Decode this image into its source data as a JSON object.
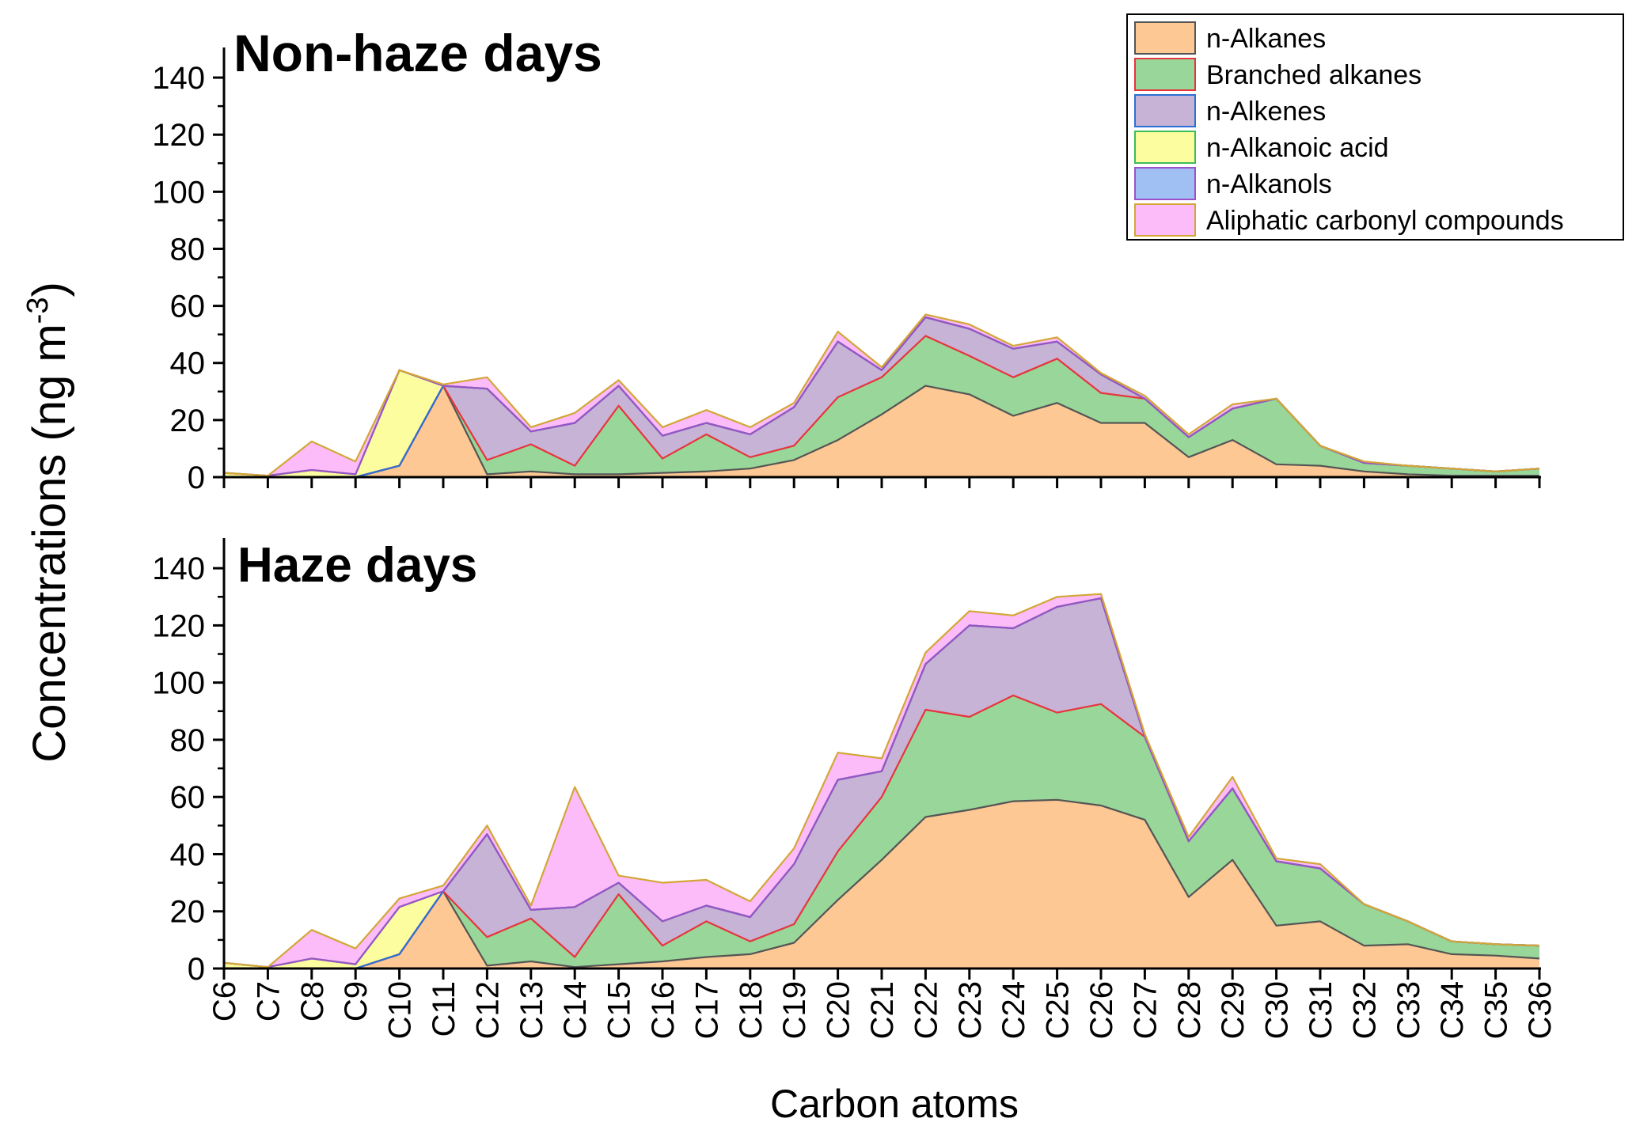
{
  "chart_data": {
    "type": "area",
    "stacked": true,
    "ylabel_main": "Concentrations (ng m",
    "ylabel_sup": "-3",
    "ylabel_close": ")",
    "xlabel": "Carbon atoms",
    "ylim": [
      0,
      150
    ],
    "yticks": [
      0,
      20,
      40,
      60,
      80,
      100,
      120,
      140
    ],
    "categories": [
      "C6",
      "C7",
      "C8",
      "C9",
      "C10",
      "C11",
      "C12",
      "C13",
      "C14",
      "C15",
      "C16",
      "C17",
      "C18",
      "C19",
      "C20",
      "C21",
      "C22",
      "C23",
      "C24",
      "C25",
      "C26",
      "C27",
      "C28",
      "C29",
      "C30",
      "C31",
      "C32",
      "C33",
      "C34",
      "C35",
      "C36"
    ],
    "legend": {
      "placement": "top-right",
      "entries": [
        {
          "name": "n-Alkanes",
          "fill": "#fdc894",
          "stroke": "#555555"
        },
        {
          "name": "Branched alkanes",
          "fill": "#98d799",
          "stroke": "#e8343c"
        },
        {
          "name": "n-Alkenes",
          "fill": "#c6b3d6",
          "stroke": "#2c6fd6"
        },
        {
          "name": "n-Alkanoic acid",
          "fill": "#fbfd9f",
          "stroke": "#3cbd56"
        },
        {
          "name": "n-Alkanols",
          "fill": "#a0c0f4",
          "stroke": "#9b52c8"
        },
        {
          "name": "Aliphatic carbonyl compounds",
          "fill": "#fbbcf9",
          "stroke": "#d4a637"
        }
      ]
    },
    "panels": [
      {
        "title": "Non-haze days",
        "cumulative": true,
        "series": [
          {
            "name": "n-Alkanes",
            "values": [
              0,
              0,
              0,
              0,
              4,
              32,
              1,
              2,
              1,
              1,
              1.5,
              2,
              3,
              6,
              13,
              22,
              32,
              29,
              21.5,
              26,
              19,
              19,
              7,
              13,
              4.5,
              4,
              2,
              1,
              0.5,
              0.5,
              0.5
            ]
          },
          {
            "name": "Branched alkanes",
            "values": [
              0,
              0,
              0,
              0,
              4,
              32,
              6,
              11.5,
              4,
              25,
              6.5,
              15,
              7,
              11,
              28,
              35,
              49.5,
              42.5,
              35,
              41.5,
              29.5,
              27.5,
              14,
              24,
              27.5,
              11,
              5,
              4,
              3,
              2,
              3
            ]
          },
          {
            "name": "n-Alkenes",
            "values": [
              0,
              0,
              0,
              0,
              4,
              32,
              31,
              16,
              19,
              32,
              14.5,
              19,
              15,
              24.5,
              47.5,
              37.5,
              56,
              52,
              45,
              47.5,
              36,
              27.5,
              14,
              24,
              27.5,
              11,
              5,
              4,
              3,
              2,
              3
            ]
          },
          {
            "name": "n-Alkanoic acid",
            "values": [
              1.5,
              0.5,
              2.5,
              1,
              37.5,
              32,
              31,
              16,
              19,
              32,
              14.5,
              19,
              15,
              24.5,
              47.5,
              37.5,
              56,
              52,
              45,
              47.5,
              36,
              27.5,
              14,
              24,
              27.5,
              11,
              5,
              4,
              3,
              2,
              3
            ]
          },
          {
            "name": "n-Alkanols",
            "values": [
              1.5,
              0.5,
              2.5,
              1,
              37.5,
              32,
              31,
              16,
              19,
              32,
              14.5,
              19,
              15,
              24.5,
              47.5,
              37.5,
              56,
              52,
              45,
              47.5,
              36,
              27.5,
              14,
              24,
              27.5,
              11,
              5,
              4,
              3,
              2,
              3
            ]
          },
          {
            "name": "Aliphatic carbonyl compounds",
            "values": [
              1.5,
              0.5,
              12.5,
              5.5,
              37.5,
              32.5,
              35,
              17.5,
              22.5,
              34,
              17.5,
              23.5,
              17.5,
              26,
              51,
              38.5,
              57,
              53.5,
              46,
              49,
              36.5,
              28.5,
              15,
              25.5,
              27.5,
              11,
              5.5,
              4,
              3,
              2,
              3
            ]
          }
        ]
      },
      {
        "title": "Haze days",
        "cumulative": true,
        "series": [
          {
            "name": "n-Alkanes",
            "values": [
              0,
              0,
              0,
              0,
              5,
              27,
              1,
              2.5,
              0.5,
              1.5,
              2.5,
              4,
              5,
              9,
              24,
              38,
              53,
              55.5,
              58.5,
              59,
              57,
              52,
              25,
              38,
              15,
              16.5,
              8,
              8.5,
              5,
              4.5,
              3.5
            ]
          },
          {
            "name": "Branched alkanes",
            "values": [
              0,
              0,
              0,
              0,
              5,
              27,
              11,
              17.5,
              4,
              26,
              8,
              16.5,
              9.5,
              15.5,
              41,
              60,
              90.5,
              88,
              95.5,
              89.5,
              92.5,
              81,
              44.5,
              63,
              37.5,
              35,
              22.5,
              16.5,
              9.5,
              8.5,
              8
            ]
          },
          {
            "name": "n-Alkenes",
            "values": [
              0,
              0,
              0,
              0,
              5,
              27,
              47,
              20.5,
              21.5,
              30,
              16.5,
              22,
              18,
              36.5,
              66,
              69,
              106.5,
              120,
              119,
              126.5,
              129.5,
              81,
              44.5,
              63,
              37.5,
              35,
              22.5,
              16.5,
              9.5,
              8.5,
              8
            ]
          },
          {
            "name": "n-Alkanoic acid",
            "values": [
              2,
              0.5,
              3.5,
              1.5,
              21.5,
              27,
              47,
              20.5,
              21.5,
              30,
              16.5,
              22,
              18,
              36.5,
              66,
              69,
              106.5,
              120,
              119,
              126.5,
              129.5,
              81,
              44.5,
              63,
              37.5,
              35,
              22.5,
              16.5,
              9.5,
              8.5,
              8
            ]
          },
          {
            "name": "n-Alkanols",
            "values": [
              2,
              0.5,
              3.5,
              1.5,
              21.5,
              27,
              47,
              20.5,
              21.5,
              30,
              16.5,
              22,
              18,
              36.5,
              66,
              69,
              106.5,
              120,
              119,
              126.5,
              129.5,
              81,
              44.5,
              63,
              37.5,
              35,
              22.5,
              16.5,
              9.5,
              8.5,
              8
            ]
          },
          {
            "name": "Aliphatic carbonyl compounds",
            "values": [
              2,
              0.5,
              13.5,
              7,
              24.5,
              29,
              50,
              22,
              63.5,
              32.5,
              30,
              31,
              23.5,
              42,
              75.5,
              73.5,
              110.5,
              125,
              123.5,
              130,
              131,
              82,
              46,
              67,
              38.5,
              36.5,
              22.5,
              16.5,
              9.5,
              8.5,
              8
            ]
          }
        ]
      }
    ]
  }
}
